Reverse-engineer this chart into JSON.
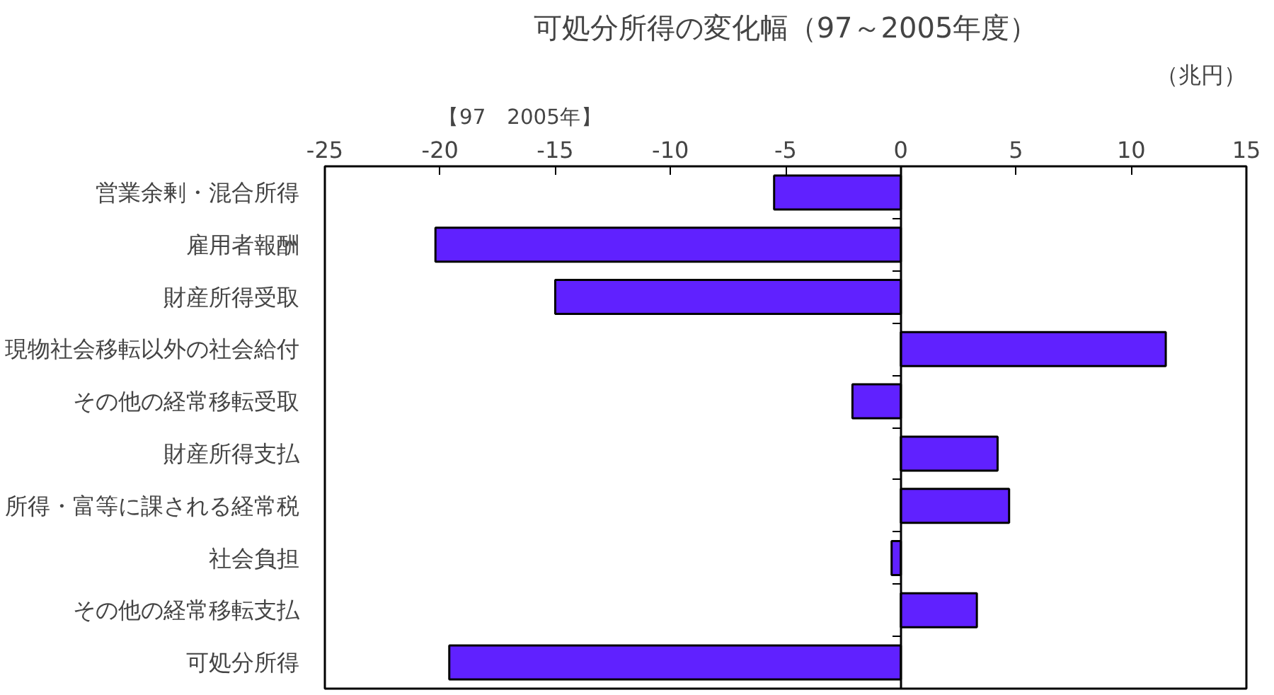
{
  "chart_data": {
    "type": "bar",
    "orientation": "horizontal",
    "title": "可処分所得の変化幅（97～2005年度）",
    "xlabel": "（兆円）",
    "annotations": [
      "【97　2005年】"
    ],
    "categories": [
      "営業余剰・混合所得",
      "雇用者報酬",
      "財産所得受取",
      "現物社会移転以外の社会給付",
      "その他の経常移転受取",
      "財産所得支払",
      "所得・富等に課される経常税",
      "社会負担",
      "その他の経常移転支払",
      "可処分所得"
    ],
    "values": [
      -5.5,
      -20.2,
      -15.0,
      11.5,
      -2.1,
      4.2,
      4.7,
      -0.4,
      3.3,
      -19.6
    ],
    "color": "#6021ff",
    "xlim": [
      -25,
      15
    ],
    "xticks": [
      -25,
      -20,
      -15,
      -10,
      -5,
      0,
      5,
      10,
      15
    ]
  }
}
